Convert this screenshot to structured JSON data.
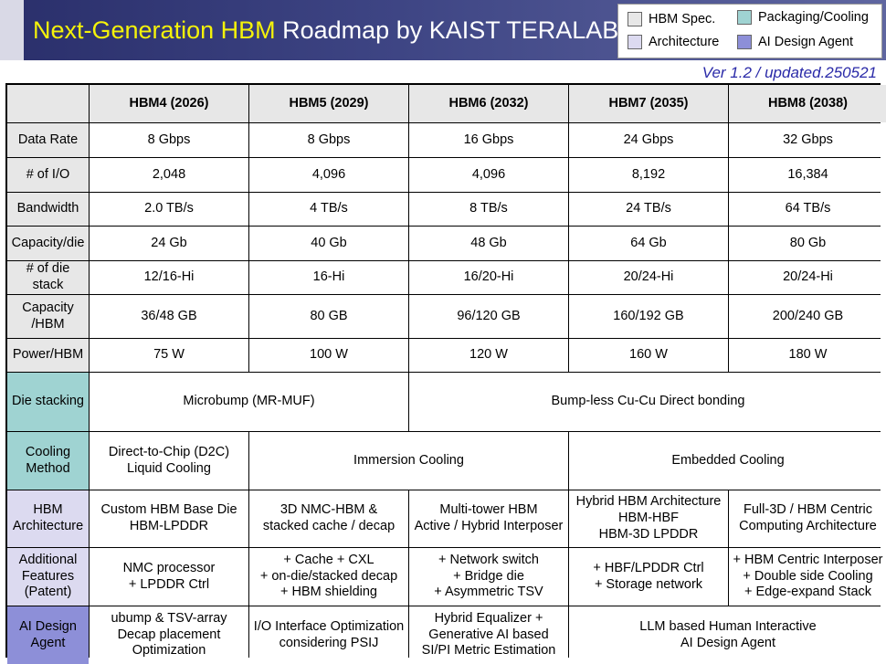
{
  "title": {
    "accent": "Next-Generation HBM",
    "rest": "Roadmap by KAIST TERALAB"
  },
  "version": "Ver 1.2 / updated.250521",
  "legend": [
    {
      "label": "HBM Spec.",
      "color": "#e7e7e7"
    },
    {
      "label": "Packaging/Cooling",
      "color": "#9fd3d2"
    },
    {
      "label": "Architecture",
      "color": "#dcdaf0"
    },
    {
      "label": "AI Design Agent",
      "color": "#8d8fd8"
    }
  ],
  "columns": [
    "HBM4 (2026)",
    "HBM5 (2029)",
    "HBM6 (2032)",
    "HBM7 (2035)",
    "HBM8 (2038)"
  ],
  "spec_rows": [
    {
      "label": "Data Rate",
      "values": [
        "8 Gbps",
        "8 Gbps",
        "16 Gbps",
        "24 Gbps",
        "32 Gbps"
      ]
    },
    {
      "label": "# of I/O",
      "values": [
        "2,048",
        "4,096",
        "4,096",
        "8,192",
        "16,384"
      ]
    },
    {
      "label": "Bandwidth",
      "values": [
        "2.0 TB/s",
        "4 TB/s",
        "8 TB/s",
        "24 TB/s",
        "64 TB/s"
      ]
    },
    {
      "label": "Capacity/die",
      "values": [
        "24 Gb",
        "40 Gb",
        "48 Gb",
        "64 Gb",
        "80 Gb"
      ]
    },
    {
      "label": "# of die stack",
      "values": [
        "12/16-Hi",
        "16-Hi",
        "16/20-Hi",
        "20/24-Hi",
        "20/24-Hi"
      ]
    },
    {
      "label": "Capacity\n/HBM",
      "values": [
        "36/48 GB",
        "80 GB",
        "96/120 GB",
        "160/192 GB",
        "200/240 GB"
      ]
    },
    {
      "label": "Power/HBM",
      "values": [
        "75 W",
        "100 W",
        "120 W",
        "160 W",
        "180 W"
      ]
    }
  ],
  "die_stacking": {
    "label": "Die stacking",
    "a": "Microbump (MR-MUF)",
    "b": "Bump-less Cu-Cu Direct bonding"
  },
  "cooling": {
    "label": "Cooling\nMethod",
    "a": "Direct-to-Chip (D2C)\nLiquid Cooling",
    "b": "Immersion Cooling",
    "c": "Embedded Cooling"
  },
  "architecture": {
    "label": "HBM\nArchitecture",
    "values": [
      "Custom HBM Base Die\nHBM-LPDDR",
      "3D NMC-HBM &\nstacked cache / decap",
      "Multi-tower HBM\nActive / Hybrid Interposer",
      "Hybrid HBM Architecture\nHBM-HBF\nHBM-3D LPDDR",
      "Full-3D / HBM Centric\nComputing Architecture"
    ]
  },
  "features": {
    "label": "Additional\nFeatures\n(Patent)",
    "values": [
      "NMC processor\n+ LPDDR Ctrl",
      "+ Cache + CXL\n+ on-die/stacked decap\n+ HBM shielding",
      "+ Network switch\n+ Bridge die\n+ Asymmetric TSV",
      "+ HBF/LPDDR Ctrl\n+ Storage network",
      "+ HBM Centric Interposer\n+ Double side Cooling\n+ Edge-expand Stack"
    ]
  },
  "ai_agent": {
    "label": "AI Design\nAgent",
    "values": [
      "ubump & TSV-array\nDecap placement\nOptimization",
      "I/O Interface Optimization\nconsidering PSIJ",
      "Hybrid Equalizer +\nGenerative AI based\nSI/PI Metric Estimation",
      "LLM based Human Interactive\nAI Design Agent"
    ]
  }
}
